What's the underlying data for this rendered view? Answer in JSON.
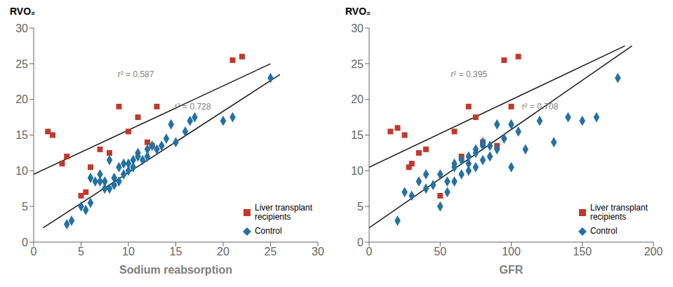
{
  "chart_data": [
    {
      "type": "scatter",
      "ylabel": "RVO₂",
      "xlabel": "Sodium reabsorption",
      "xlim": [
        0,
        30
      ],
      "ylim": [
        0,
        30
      ],
      "xticks": [
        0,
        5,
        10,
        15,
        20,
        25,
        30
      ],
      "yticks": [
        0,
        5,
        10,
        15,
        20,
        25,
        30
      ],
      "grid": false,
      "legend": "lower right",
      "series": [
        {
          "name": "Liver transplant\nrecipients",
          "color": "#C0392B",
          "marker": "square",
          "x": [
            1.5,
            2.0,
            3.0,
            3.5,
            5.0,
            5.5,
            6.0,
            7.0,
            8.0,
            9.0,
            10.0,
            11.0,
            12.0,
            12.5,
            13.0,
            21.0,
            22.0
          ],
          "y": [
            15.5,
            15.0,
            11.0,
            12.0,
            6.5,
            7.0,
            10.5,
            13.0,
            12.5,
            19.0,
            15.5,
            17.5,
            14.0,
            13.5,
            19.0,
            25.5,
            26.0
          ]
        },
        {
          "name": "Control",
          "color": "#2471A3",
          "marker": "diamond",
          "x": [
            3.5,
            4.0,
            5.0,
            5.5,
            6.0,
            6.0,
            6.5,
            7.0,
            7.0,
            7.5,
            7.5,
            8.0,
            8.0,
            8.5,
            8.5,
            9.0,
            9.0,
            9.5,
            9.5,
            10.0,
            10.0,
            10.5,
            10.5,
            11.0,
            11.0,
            11.5,
            12.0,
            12.0,
            12.5,
            13.0,
            13.5,
            14.0,
            14.5,
            15.0,
            16.0,
            16.5,
            17.0,
            20.0,
            21.0,
            25.0
          ],
          "y": [
            2.5,
            3.0,
            5.0,
            4.5,
            5.5,
            9.0,
            8.5,
            8.5,
            9.5,
            7.5,
            8.5,
            7.5,
            11.5,
            8.0,
            9.0,
            8.5,
            10.5,
            9.5,
            11.0,
            10.0,
            11.0,
            10.5,
            11.5,
            12.0,
            12.5,
            11.5,
            12.0,
            13.0,
            13.5,
            13.0,
            13.5,
            14.5,
            16.5,
            14.0,
            15.5,
            17.0,
            17.5,
            17.0,
            17.5,
            23.0
          ]
        },
        {
          "type": "line",
          "color": "#1a1a1a",
          "x": [
            0,
            25
          ],
          "y": [
            9.5,
            25.0
          ]
        },
        {
          "type": "line",
          "color": "#1a1a1a",
          "x": [
            1,
            26
          ],
          "y": [
            2.0,
            23.5
          ]
        }
      ],
      "annotations": [
        {
          "text": "r² = 0.587",
          "x": 8.5,
          "y": 23.5
        },
        {
          "text": "r² = 0.728",
          "x": 14.5,
          "y": 19.0
        }
      ]
    },
    {
      "type": "scatter",
      "ylabel": "RVO₂",
      "xlabel": "GFR",
      "xlim": [
        0,
        200
      ],
      "ylim": [
        0,
        30
      ],
      "xticks": [
        0,
        50,
        100,
        150,
        200
      ],
      "yticks": [
        0,
        5,
        10,
        15,
        20,
        25,
        30
      ],
      "grid": false,
      "legend": "lower right",
      "series": [
        {
          "name": "Liver transplant\nrecipients",
          "color": "#C0392B",
          "marker": "square",
          "x": [
            15,
            20,
            25,
            28,
            30,
            35,
            40,
            50,
            60,
            65,
            70,
            75,
            80,
            90,
            95,
            100,
            105
          ],
          "y": [
            15.5,
            16.0,
            15.0,
            10.5,
            11.0,
            12.5,
            13.0,
            6.5,
            15.5,
            12.0,
            19.0,
            17.5,
            14.0,
            13.5,
            25.5,
            19.0,
            26.0
          ]
        },
        {
          "name": "Control",
          "color": "#2471A3",
          "marker": "diamond",
          "x": [
            20,
            25,
            30,
            35,
            40,
            40,
            45,
            50,
            50,
            55,
            55,
            60,
            60,
            60,
            65,
            65,
            70,
            70,
            70,
            75,
            75,
            75,
            80,
            80,
            80,
            85,
            85,
            90,
            90,
            95,
            100,
            100,
            105,
            110,
            120,
            130,
            140,
            150,
            160,
            175
          ],
          "y": [
            3.0,
            7.0,
            6.5,
            8.5,
            7.5,
            9.5,
            8.0,
            5.0,
            9.5,
            7.0,
            8.5,
            8.5,
            10.5,
            11.0,
            9.5,
            11.5,
            10.0,
            11.0,
            12.0,
            10.5,
            12.5,
            13.0,
            11.5,
            13.5,
            14.0,
            12.0,
            13.5,
            13.0,
            16.5,
            14.5,
            10.5,
            16.5,
            15.5,
            13.0,
            17.0,
            14.0,
            17.5,
            17.0,
            17.5,
            23.0
          ]
        },
        {
          "type": "line",
          "color": "#1a1a1a",
          "x": [
            0,
            180
          ],
          "y": [
            10.5,
            27.5
          ]
        },
        {
          "type": "line",
          "color": "#1a1a1a",
          "x": [
            0,
            185
          ],
          "y": [
            2.0,
            27.5
          ]
        }
      ],
      "annotations": [
        {
          "text": "r² = 0.395",
          "x": 55,
          "y": 23.5
        },
        {
          "text": "r² = 0.708",
          "x": 105,
          "y": 19.0
        }
      ]
    }
  ]
}
